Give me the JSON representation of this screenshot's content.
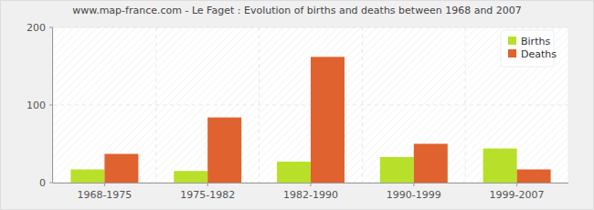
{
  "chart_data": {
    "type": "bar",
    "title": "www.map-france.com - Le Faget : Evolution of births and deaths between 1968 and 2007",
    "categories": [
      "1968-1975",
      "1975-1982",
      "1982-1990",
      "1990-1999",
      "1999-2007"
    ],
    "series": [
      {
        "name": "Births",
        "color": "#b8e02a",
        "values": [
          17,
          15,
          27,
          33,
          44
        ]
      },
      {
        "name": "Deaths",
        "color": "#e0622e",
        "values": [
          37,
          84,
          162,
          50,
          17
        ]
      }
    ],
    "ylim": [
      0,
      200
    ],
    "yticks": [
      0,
      100,
      200
    ],
    "grid": true,
    "legend": "top-right"
  }
}
